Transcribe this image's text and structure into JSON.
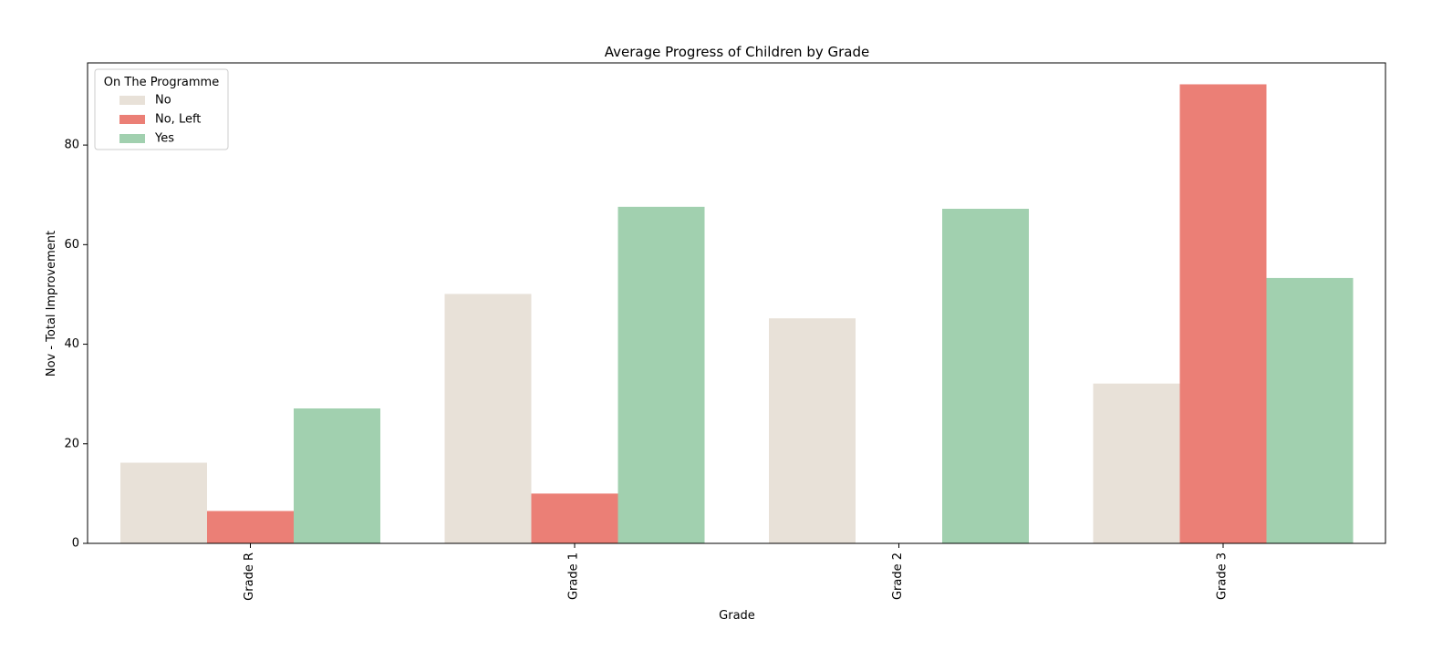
{
  "chart_data": {
    "type": "bar",
    "title": "Average Progress of Children by Grade",
    "xlabel": "Grade",
    "ylabel": "Nov - Total Improvement",
    "categories": [
      "Grade R",
      "Grade 1",
      "Grade 2",
      "Grade 3"
    ],
    "ylim": [
      0,
      96.5
    ],
    "yticks": [
      0,
      20,
      40,
      60,
      80
    ],
    "grid": false,
    "legend": {
      "title": "On The Programme",
      "placement": "top-left"
    },
    "series": [
      {
        "name": "No",
        "color": "#e8e1d8",
        "values": [
          16.2,
          50.1,
          45.2,
          32.1
        ]
      },
      {
        "name": "No, Left",
        "color": "#eb7f76",
        "values": [
          6.5,
          10.0,
          0,
          92.2
        ]
      },
      {
        "name": "Yes",
        "color": "#a1d0af",
        "values": [
          27.1,
          67.6,
          67.2,
          53.3
        ]
      }
    ]
  }
}
